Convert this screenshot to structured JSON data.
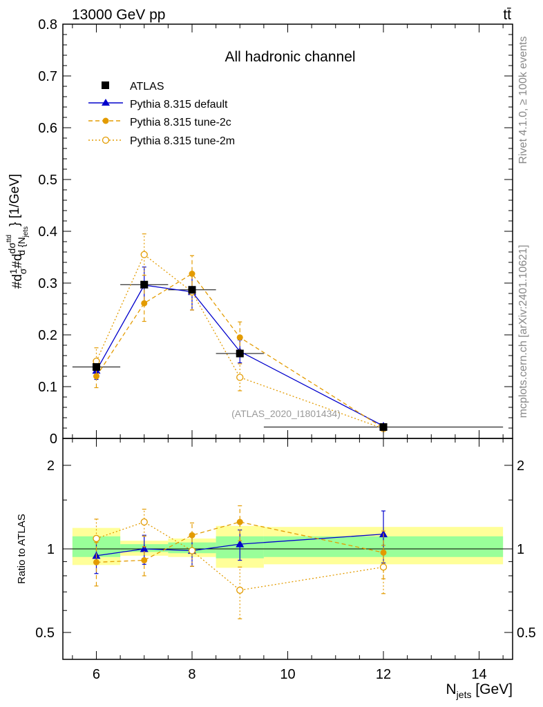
{
  "header": {
    "beam_label": "13000 GeV pp",
    "process_label": "tt̄"
  },
  "side_labels": {
    "rivet": "Rivet 4.1.0, ≥ 100k events",
    "source": "mcplots.cern.ch [arXiv:2401.10621]"
  },
  "chart_data": [
    {
      "type": "line",
      "title": "All hadronic channel",
      "annotation": "(ATLAS_2020_I1801434)",
      "ylabel": "#d1/σ#d dσ^{ttbar}/d {N_jets} [1/GeV]",
      "ylim": [
        0,
        0.8
      ],
      "xlim": [
        5.3,
        14.7
      ],
      "yticks": [
        0,
        0.1,
        0.2,
        0.3,
        0.4,
        0.5,
        0.6,
        0.7,
        0.8
      ],
      "ytick_labels": [
        "0",
        "0.1",
        "0.2",
        "0.3",
        "0.4",
        "0.5",
        "0.6",
        "0.7",
        "0.8"
      ],
      "legend": [
        "ATLAS",
        "Pythia 8.315 default",
        "Pythia 8.315 tune-2c",
        "Pythia 8.315 tune-2m"
      ],
      "series": [
        {
          "name": "ATLAS",
          "color": "#000000",
          "marker": "square",
          "x": [
            6,
            7,
            8,
            9,
            12
          ],
          "y": [
            0.138,
            0.297,
            0.287,
            0.164,
            0.022
          ],
          "xbins": [
            [
              5.5,
              6.5
            ],
            [
              6.5,
              7.5
            ],
            [
              7.5,
              8.5
            ],
            [
              8.5,
              9.5
            ],
            [
              9.5,
              14.5
            ]
          ]
        },
        {
          "name": "Pythia 8.315 default",
          "color": "#0000cc",
          "marker": "triangle",
          "style": "solid",
          "x": [
            6,
            7,
            8,
            9,
            12
          ],
          "y": [
            0.131,
            0.296,
            0.283,
            0.168,
            0.024
          ],
          "err": [
            0.017,
            0.035,
            0.035,
            0.022,
            0.004
          ]
        },
        {
          "name": "Pythia 8.315 tune-2c",
          "color": "#e39b00",
          "marker": "filled-circle",
          "style": "dashed",
          "x": [
            6,
            7,
            8,
            9,
            12
          ],
          "y": [
            0.12,
            0.261,
            0.318,
            0.195,
            0.02
          ],
          "err": [
            0.022,
            0.035,
            0.035,
            0.03,
            0.004
          ]
        },
        {
          "name": "Pythia 8.315 tune-2m",
          "color": "#e39b00",
          "marker": "open-circle",
          "style": "dotted",
          "x": [
            6,
            7,
            8,
            9,
            12
          ],
          "y": [
            0.149,
            0.355,
            0.283,
            0.118,
            0.019
          ],
          "err": [
            0.026,
            0.04,
            0.035,
            0.026,
            0.004
          ]
        }
      ]
    },
    {
      "type": "line",
      "title": "",
      "ylabel": "Ratio to ATLAS",
      "xlabel": "N_jets [GeV]",
      "yscale": "log",
      "ylim": [
        0.4,
        2.5
      ],
      "xlim": [
        5.3,
        14.7
      ],
      "yticks": [
        0.5,
        1,
        2
      ],
      "ytick_labels": [
        "0.5",
        "1",
        "2"
      ],
      "xticks": [
        6,
        8,
        10,
        12,
        14
      ],
      "xtick_labels": [
        "6",
        "8",
        "10",
        "12",
        "14"
      ],
      "bands": [
        {
          "x0": 5.5,
          "x1": 6.5,
          "yellow": [
            0.875,
            1.19
          ],
          "green": [
            0.935,
            1.11
          ]
        },
        {
          "x0": 6.5,
          "x1": 7.5,
          "yellow": [
            0.945,
            1.07
          ],
          "green": [
            0.975,
            1.04
          ]
        },
        {
          "x0": 7.5,
          "x1": 8.5,
          "yellow": [
            0.935,
            1.09
          ],
          "green": [
            0.965,
            1.055
          ]
        },
        {
          "x0": 8.5,
          "x1": 9.5,
          "yellow": [
            0.855,
            1.21
          ],
          "green": [
            0.925,
            1.11
          ]
        },
        {
          "x0": 9.5,
          "x1": 14.5,
          "yellow": [
            0.88,
            1.2
          ],
          "green": [
            0.935,
            1.11
          ]
        }
      ],
      "series": [
        {
          "name": "Pythia 8.315 default",
          "x": [
            6,
            7,
            8,
            9,
            12
          ],
          "y": [
            0.945,
            1.0,
            0.985,
            1.04,
            1.13
          ],
          "err": [
            0.13,
            0.12,
            0.12,
            0.13,
            0.24
          ]
        },
        {
          "name": "Pythia 8.315 tune-2c",
          "x": [
            6,
            7,
            8,
            9,
            12
          ],
          "y": [
            0.895,
            0.91,
            1.12,
            1.25,
            0.97
          ],
          "err": [
            0.16,
            0.11,
            0.12,
            0.18,
            0.19
          ]
        },
        {
          "name": "Pythia 8.315 tune-2m",
          "x": [
            6,
            7,
            8,
            9,
            12
          ],
          "y": [
            1.09,
            1.25,
            0.985,
            0.71,
            0.86
          ],
          "err": [
            0.19,
            0.14,
            0.12,
            0.15,
            0.17
          ]
        }
      ]
    }
  ]
}
